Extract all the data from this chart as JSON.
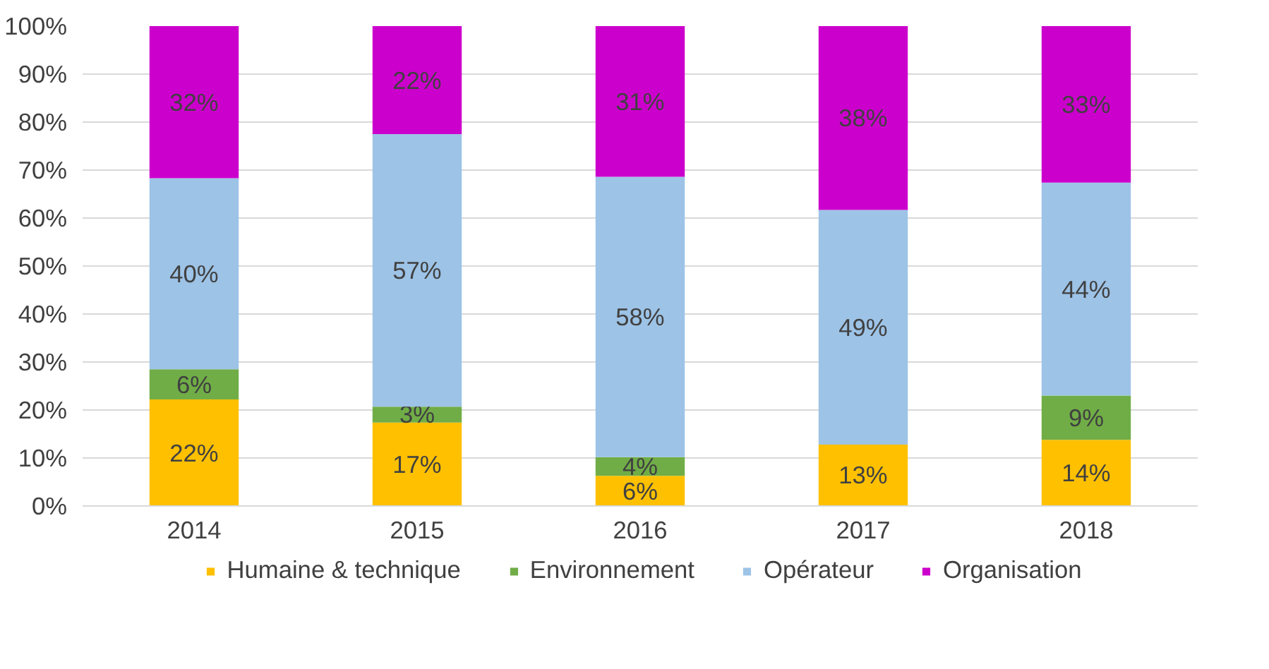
{
  "chart_data": {
    "type": "bar",
    "stacked": true,
    "categories": [
      "2014",
      "2015",
      "2016",
      "2017",
      "2018"
    ],
    "series": [
      {
        "name": "Humaine & technique",
        "color": "#ffc000",
        "values": [
          22.2,
          17.4,
          6.3,
          12.8,
          13.8
        ],
        "value_labels": [
          "22%",
          "17%",
          "6%",
          "13%",
          "14%"
        ]
      },
      {
        "name": "Environnement",
        "color": "#70ad47",
        "values": [
          6.3,
          3.3,
          3.9,
          0,
          9.2
        ],
        "value_labels": [
          "6%",
          "3%",
          "4%",
          null,
          "9%"
        ]
      },
      {
        "name": "Opérateur",
        "color": "#9dc3e6",
        "values": [
          39.8,
          56.8,
          58.4,
          48.9,
          44.4
        ],
        "value_labels": [
          "40%",
          "57%",
          "58%",
          "49%",
          "44%"
        ]
      },
      {
        "name": "Organisation",
        "color": "#cc00cc",
        "values": [
          31.7,
          22.5,
          31.4,
          38.3,
          32.6
        ],
        "value_labels": [
          "32%",
          "22%",
          "31%",
          "38%",
          "33%"
        ]
      }
    ],
    "ylim": [
      0,
      100
    ],
    "yticks": [
      {
        "value": 0,
        "label": "0%"
      },
      {
        "value": 10,
        "label": "10%"
      },
      {
        "value": 20,
        "label": "20%"
      },
      {
        "value": 30,
        "label": "30%"
      },
      {
        "value": 40,
        "label": "40%"
      },
      {
        "value": 50,
        "label": "50%"
      },
      {
        "value": 60,
        "label": "60%"
      },
      {
        "value": 70,
        "label": "70%"
      },
      {
        "value": 80,
        "label": "80%"
      },
      {
        "value": 90,
        "label": "90%"
      },
      {
        "value": 100,
        "label": "100%"
      }
    ],
    "grid": "y",
    "legend": "bottom"
  }
}
